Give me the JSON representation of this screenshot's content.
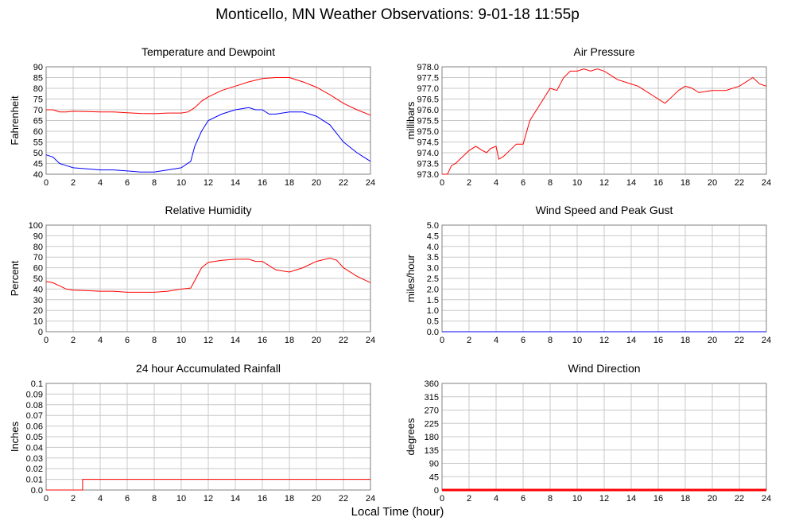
{
  "page": {
    "title": "Monticello, MN Weather Observations: 9-01-18 11:55p",
    "xaxis_label": "Local Time (hour)"
  },
  "colors": {
    "series_red": "#ff0000",
    "series_blue": "#0000ff",
    "grid": "#c8c8c8",
    "frame": "#808080"
  },
  "chart_data": [
    {
      "type": "line",
      "title": "Temperature and Dewpoint",
      "ylabel": "Fahrenheit",
      "xlim": [
        0,
        24
      ],
      "x_ticks": [
        0,
        2,
        4,
        6,
        8,
        10,
        12,
        14,
        16,
        18,
        20,
        22,
        24
      ],
      "ylim": [
        40,
        90
      ],
      "y_ticks": [
        "40",
        "45",
        "50",
        "55",
        "60",
        "65",
        "70",
        "75",
        "80",
        "85",
        "90"
      ],
      "grid": true,
      "series": [
        {
          "color": "#ff0000",
          "points": [
            [
              0,
              70
            ],
            [
              0.5,
              70
            ],
            [
              1,
              69
            ],
            [
              1.5,
              69
            ],
            [
              2,
              69.3
            ],
            [
              3,
              69.2
            ],
            [
              4,
              69
            ],
            [
              5,
              69
            ],
            [
              6,
              68.6
            ],
            [
              7,
              68.3
            ],
            [
              8,
              68.2
            ],
            [
              9,
              68.5
            ],
            [
              10,
              68.5
            ],
            [
              10.5,
              69
            ],
            [
              11,
              71
            ],
            [
              11.5,
              74
            ],
            [
              12,
              76
            ],
            [
              13,
              79
            ],
            [
              14,
              81
            ],
            [
              15,
              83
            ],
            [
              16,
              84.5
            ],
            [
              17,
              85
            ],
            [
              18,
              85
            ],
            [
              19,
              83
            ],
            [
              20,
              80.5
            ],
            [
              21,
              77
            ],
            [
              22,
              73
            ],
            [
              23,
              70
            ],
            [
              24,
              67.5
            ]
          ]
        },
        {
          "color": "#0000ff",
          "points": [
            [
              0,
              49
            ],
            [
              0.5,
              48
            ],
            [
              1,
              45
            ],
            [
              1.5,
              44
            ],
            [
              2,
              43
            ],
            [
              3,
              42.5
            ],
            [
              4,
              42
            ],
            [
              5,
              42
            ],
            [
              6,
              41.5
            ],
            [
              7,
              41
            ],
            [
              8,
              41
            ],
            [
              9,
              42
            ],
            [
              10,
              43
            ],
            [
              10.7,
              46
            ],
            [
              11,
              53
            ],
            [
              11.5,
              60
            ],
            [
              12,
              65
            ],
            [
              13,
              68
            ],
            [
              14,
              70
            ],
            [
              15,
              71
            ],
            [
              15.5,
              70
            ],
            [
              16,
              70
            ],
            [
              16.5,
              68
            ],
            [
              17,
              68
            ],
            [
              18,
              69
            ],
            [
              19,
              69
            ],
            [
              20,
              67
            ],
            [
              21,
              63
            ],
            [
              22,
              55
            ],
            [
              23,
              50
            ],
            [
              23.5,
              48
            ],
            [
              24,
              46
            ]
          ]
        }
      ]
    },
    {
      "type": "line",
      "title": "Air Pressure",
      "ylabel": "millibars",
      "xlim": [
        0,
        24
      ],
      "x_ticks": [
        0,
        2,
        4,
        6,
        8,
        10,
        12,
        14,
        16,
        18,
        20,
        22,
        24
      ],
      "ylim": [
        973.0,
        978.0
      ],
      "y_ticks": [
        "973.0",
        "973.5",
        "974.0",
        "974.5",
        "975.0",
        "975.5",
        "976.0",
        "976.5",
        "977.0",
        "977.5",
        "978.0"
      ],
      "grid": true,
      "series": [
        {
          "color": "#ff0000",
          "points": [
            [
              0,
              973.0
            ],
            [
              0.4,
              973.0
            ],
            [
              0.7,
              973.4
            ],
            [
              1,
              973.5
            ],
            [
              1.5,
              973.8
            ],
            [
              2,
              974.1
            ],
            [
              2.5,
              974.3
            ],
            [
              3,
              974.1
            ],
            [
              3.3,
              974.0
            ],
            [
              3.6,
              974.2
            ],
            [
              4,
              974.3
            ],
            [
              4.2,
              973.7
            ],
            [
              4.5,
              973.8
            ],
            [
              5,
              974.1
            ],
            [
              5.5,
              974.4
            ],
            [
              6,
              974.4
            ],
            [
              6.5,
              975.5
            ],
            [
              7,
              976.0
            ],
            [
              7.5,
              976.5
            ],
            [
              8,
              977.0
            ],
            [
              8.5,
              976.9
            ],
            [
              9,
              977.5
            ],
            [
              9.5,
              977.8
            ],
            [
              10,
              977.8
            ],
            [
              10.5,
              977.9
            ],
            [
              11,
              977.8
            ],
            [
              11.5,
              977.9
            ],
            [
              12,
              977.8
            ],
            [
              12.5,
              977.6
            ],
            [
              13,
              977.4
            ],
            [
              14,
              977.2
            ],
            [
              14.5,
              977.1
            ],
            [
              15,
              976.9
            ],
            [
              16,
              976.5
            ],
            [
              16.5,
              976.3
            ],
            [
              17,
              976.6
            ],
            [
              17.5,
              976.9
            ],
            [
              18,
              977.1
            ],
            [
              18.5,
              977.0
            ],
            [
              19,
              976.8
            ],
            [
              20,
              976.9
            ],
            [
              21,
              976.9
            ],
            [
              22,
              977.1
            ],
            [
              22.5,
              977.3
            ],
            [
              23,
              977.5
            ],
            [
              23.5,
              977.2
            ],
            [
              24,
              977.1
            ]
          ]
        }
      ]
    },
    {
      "type": "line",
      "title": "Relative Humidity",
      "ylabel": "Percent",
      "xlim": [
        0,
        24
      ],
      "x_ticks": [
        0,
        2,
        4,
        6,
        8,
        10,
        12,
        14,
        16,
        18,
        20,
        22,
        24
      ],
      "ylim": [
        0,
        100
      ],
      "y_ticks": [
        "0",
        "10",
        "20",
        "30",
        "40",
        "50",
        "60",
        "70",
        "80",
        "90",
        "100"
      ],
      "grid": true,
      "series": [
        {
          "color": "#ff0000",
          "points": [
            [
              0,
              47
            ],
            [
              0.5,
              46
            ],
            [
              1,
              43
            ],
            [
              1.5,
              40
            ],
            [
              2,
              39
            ],
            [
              3,
              38.5
            ],
            [
              4,
              38
            ],
            [
              5,
              38
            ],
            [
              6,
              37
            ],
            [
              7,
              37
            ],
            [
              8,
              37
            ],
            [
              9,
              38
            ],
            [
              10,
              40
            ],
            [
              10.7,
              41
            ],
            [
              11,
              48
            ],
            [
              11.5,
              60
            ],
            [
              12,
              65
            ],
            [
              13,
              67
            ],
            [
              14,
              68
            ],
            [
              15,
              68
            ],
            [
              15.5,
              66
            ],
            [
              16,
              66
            ],
            [
              16.5,
              62
            ],
            [
              17,
              58
            ],
            [
              18,
              56
            ],
            [
              19,
              60
            ],
            [
              20,
              66
            ],
            [
              21,
              69
            ],
            [
              21.5,
              67
            ],
            [
              22,
              60
            ],
            [
              23,
              52
            ],
            [
              24,
              46
            ]
          ]
        }
      ]
    },
    {
      "type": "line",
      "title": "Wind Speed and Peak Gust",
      "ylabel": "miles/hour",
      "xlim": [
        0,
        24
      ],
      "x_ticks": [
        0,
        2,
        4,
        6,
        8,
        10,
        12,
        14,
        16,
        18,
        20,
        22,
        24
      ],
      "ylim": [
        0.0,
        5.0
      ],
      "y_ticks": [
        "0.0",
        "0.5",
        "1.0",
        "1.5",
        "2.0",
        "2.5",
        "3.0",
        "3.5",
        "4.0",
        "4.5",
        "5.0"
      ],
      "grid": true,
      "series": [
        {
          "color": "#0000ff",
          "points": [
            [
              0,
              0
            ],
            [
              24,
              0
            ]
          ]
        }
      ]
    },
    {
      "type": "line",
      "title": "24 hour Accumulated Rainfall",
      "ylabel": "Inches",
      "xlim": [
        0,
        24
      ],
      "x_ticks": [
        0,
        2,
        4,
        6,
        8,
        10,
        12,
        14,
        16,
        18,
        20,
        22,
        24
      ],
      "ylim": [
        0.0,
        0.1
      ],
      "y_ticks": [
        "0.0",
        "0.01",
        "0.02",
        "0.03",
        "0.04",
        "0.05",
        "0.06",
        "0.07",
        "0.08",
        "0.09",
        "0.1"
      ],
      "grid": true,
      "series": [
        {
          "color": "#ff0000",
          "points": [
            [
              0,
              0
            ],
            [
              2.7,
              0
            ],
            [
              2.7,
              0.01
            ],
            [
              24,
              0.01
            ]
          ]
        }
      ]
    },
    {
      "type": "line",
      "title": "Wind Direction",
      "ylabel": "degrees",
      "xlim": [
        0,
        24
      ],
      "x_ticks": [
        0,
        2,
        4,
        6,
        8,
        10,
        12,
        14,
        16,
        18,
        20,
        22,
        24
      ],
      "ylim": [
        0,
        360
      ],
      "y_ticks": [
        "0",
        "45",
        "90",
        "135",
        "180",
        "225",
        "270",
        "315",
        "360"
      ],
      "grid": true,
      "series": [
        {
          "color": "#ff0000",
          "points": [
            [
              0,
              0
            ],
            [
              24,
              0
            ]
          ]
        }
      ]
    }
  ]
}
